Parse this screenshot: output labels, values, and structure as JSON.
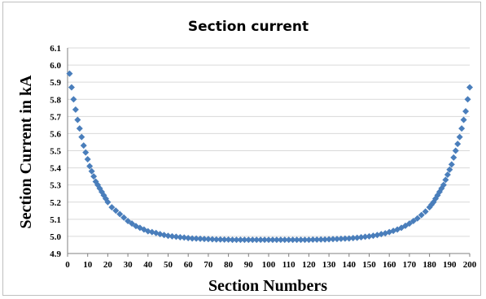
{
  "chart_data": {
    "type": "scatter",
    "title": "Section current",
    "xlabel": "Section Numbers",
    "ylabel": "Section Current in kA",
    "xlim": [
      0,
      200
    ],
    "ylim": [
      4.9,
      6.1
    ],
    "xticks": [
      "0",
      "10",
      "20",
      "30",
      "40",
      "50",
      "60",
      "70",
      "80",
      "90",
      "100",
      "110",
      "120",
      "130",
      "140",
      "150",
      "160",
      "170",
      "180",
      "190",
      "200"
    ],
    "yticks": [
      "4.9",
      "5.0",
      "5.1",
      "5.2",
      "5.3",
      "5.4",
      "5.5",
      "5.6",
      "5.7",
      "5.8",
      "5.9",
      "6.0",
      "6.1"
    ],
    "grid": true,
    "marker": "diamond",
    "color": "#4a7ebb",
    "series": [
      {
        "x": [
          1,
          2,
          3,
          4,
          5,
          6,
          7,
          8,
          9,
          10,
          11,
          12,
          13,
          14,
          15,
          16,
          17,
          18,
          19,
          20,
          22,
          24,
          26,
          28,
          30,
          32,
          34,
          36,
          38,
          40,
          42,
          44,
          46,
          48,
          50,
          52,
          54,
          56,
          58,
          60,
          62,
          64,
          66,
          68,
          70,
          72,
          74,
          76,
          78,
          80,
          82,
          84,
          86,
          88,
          90,
          92,
          94,
          96,
          98,
          100,
          102,
          104,
          106,
          108,
          110,
          112,
          114,
          116,
          118,
          120,
          122,
          124,
          126,
          128,
          130,
          132,
          134,
          136,
          138,
          140,
          142,
          144,
          146,
          148,
          150,
          152,
          154,
          156,
          158,
          160,
          162,
          164,
          166,
          168,
          170,
          172,
          174,
          176,
          178,
          180,
          181,
          182,
          183,
          184,
          185,
          186,
          187,
          188,
          189,
          190,
          191,
          192,
          193,
          194,
          195,
          196,
          197,
          198,
          199,
          200
        ],
        "y": [
          5.95,
          5.87,
          5.8,
          5.74,
          5.68,
          5.63,
          5.58,
          5.53,
          5.49,
          5.45,
          5.41,
          5.38,
          5.35,
          5.32,
          5.3,
          5.28,
          5.26,
          5.24,
          5.22,
          5.2,
          5.17,
          5.15,
          5.13,
          5.11,
          5.09,
          5.075,
          5.06,
          5.05,
          5.04,
          5.03,
          5.025,
          5.02,
          5.013,
          5.008,
          5.003,
          5.0,
          4.998,
          4.995,
          4.993,
          4.99,
          4.988,
          4.987,
          4.986,
          4.985,
          4.984,
          4.983,
          4.982,
          4.982,
          4.981,
          4.981,
          4.98,
          4.98,
          4.98,
          4.98,
          4.98,
          4.98,
          4.98,
          4.98,
          4.98,
          4.98,
          4.98,
          4.98,
          4.98,
          4.98,
          4.98,
          4.98,
          4.98,
          4.98,
          4.98,
          4.98,
          4.981,
          4.981,
          4.982,
          4.982,
          4.983,
          4.984,
          4.985,
          4.986,
          4.987,
          4.988,
          4.99,
          4.992,
          4.995,
          4.998,
          5.0,
          5.004,
          5.008,
          5.013,
          5.018,
          5.025,
          5.032,
          5.04,
          5.05,
          5.062,
          5.075,
          5.09,
          5.105,
          5.125,
          5.145,
          5.17,
          5.185,
          5.2,
          5.22,
          5.24,
          5.26,
          5.28,
          5.3,
          5.33,
          5.36,
          5.39,
          5.42,
          5.46,
          5.5,
          5.54,
          5.58,
          5.63,
          5.68,
          5.73,
          5.8,
          5.87
        ]
      }
    ]
  }
}
